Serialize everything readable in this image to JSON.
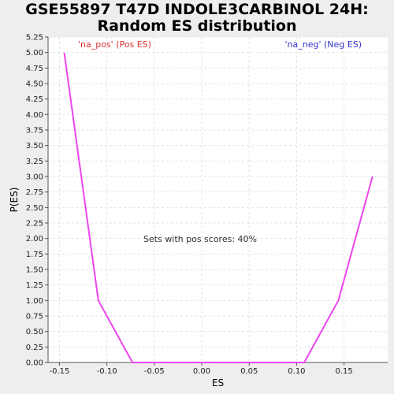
{
  "chart_data": {
    "type": "line",
    "title_lines": [
      "GSE55897 T47D INDOLE3CARBINOL 24H:",
      "Random ES distribution"
    ],
    "xlabel": "ES",
    "ylabel": "P(ES)",
    "xlim": [
      -0.162,
      0.196
    ],
    "ylim": [
      0,
      5.25
    ],
    "xticks": [
      -0.15,
      -0.1,
      -0.05,
      0.0,
      0.05,
      0.1,
      0.15
    ],
    "xtick_labels": [
      "-0.15",
      "-0.10",
      "-0.05",
      "0.00",
      "0.05",
      "0.10",
      "0.15"
    ],
    "yticks": [
      0,
      0.25,
      0.5,
      0.75,
      1.0,
      1.25,
      1.5,
      1.75,
      2.0,
      2.25,
      2.5,
      2.75,
      3.0,
      3.25,
      3.5,
      3.75,
      4.0,
      4.25,
      4.5,
      4.75,
      5.0,
      5.25
    ],
    "ytick_labels": [
      "0.00",
      "0.25",
      "0.50",
      "0.75",
      "1.00",
      "1.25",
      "1.50",
      "1.75",
      "2.00",
      "2.25",
      "2.50",
      "2.75",
      "3.00",
      "3.25",
      "3.50",
      "3.75",
      "4.00",
      "4.25",
      "4.50",
      "4.75",
      "5.00",
      "5.25"
    ],
    "grid": true,
    "series": [
      {
        "color": "#ee44ee",
        "x": [
          -0.145,
          -0.109,
          -0.073,
          -0.037,
          0.0,
          0.036,
          0.072,
          0.108,
          0.144,
          0.18
        ],
        "y": [
          5.0,
          1.0,
          0.0,
          0.0,
          0.0,
          0.0,
          0.0,
          0.0,
          1.0,
          3.0
        ]
      }
    ],
    "legend_pos": "'na_pos' (Pos ES)",
    "legend_neg": "'na_neg' (Neg ES)",
    "legend_pos_color": "#dd3333",
    "legend_neg_color": "#3333cc",
    "annotation": "Sets with pos scores: 40%"
  }
}
